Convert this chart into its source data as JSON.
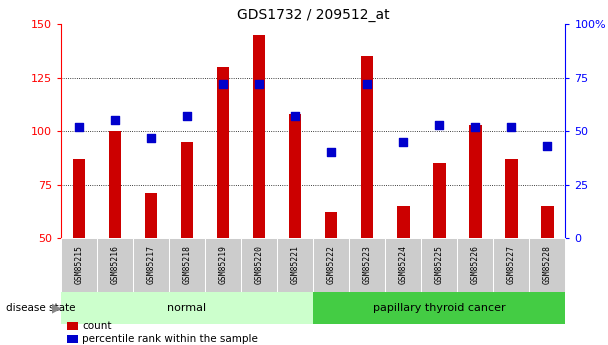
{
  "title": "GDS1732 / 209512_at",
  "samples": [
    "GSM85215",
    "GSM85216",
    "GSM85217",
    "GSM85218",
    "GSM85219",
    "GSM85220",
    "GSM85221",
    "GSM85222",
    "GSM85223",
    "GSM85224",
    "GSM85225",
    "GSM85226",
    "GSM85227",
    "GSM85228"
  ],
  "counts": [
    87,
    100,
    71,
    95,
    130,
    145,
    108,
    62,
    135,
    65,
    85,
    103,
    87,
    65
  ],
  "percentiles": [
    52,
    55,
    47,
    57,
    72,
    72,
    57,
    40,
    72,
    45,
    53,
    52,
    52,
    43
  ],
  "groups": [
    "normal",
    "normal",
    "normal",
    "normal",
    "normal",
    "normal",
    "normal",
    "papillary thyroid cancer",
    "papillary thyroid cancer",
    "papillary thyroid cancer",
    "papillary thyroid cancer",
    "papillary thyroid cancer",
    "papillary thyroid cancer",
    "papillary thyroid cancer"
  ],
  "ylim_left": [
    50,
    150
  ],
  "ylim_right": [
    0,
    100
  ],
  "bar_color": "#cc0000",
  "dot_color": "#0000cc",
  "normal_bg": "#ccffcc",
  "cancer_bg": "#44cc44",
  "tick_bg": "#cccccc",
  "bar_width": 0.35,
  "dot_size": 40,
  "gridline_vals": [
    75,
    100,
    125
  ]
}
